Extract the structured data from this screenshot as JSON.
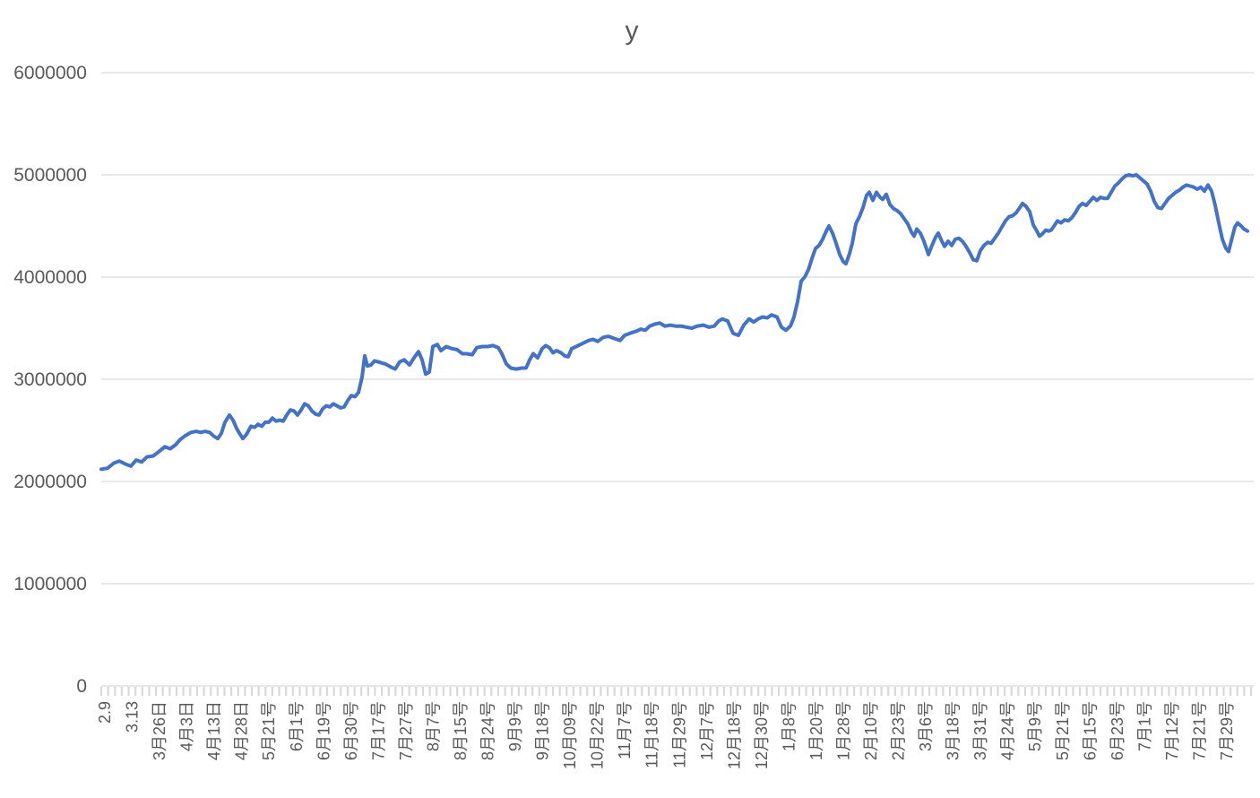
{
  "chart_data": {
    "type": "line",
    "title": "y",
    "legend": "none",
    "grid": "horizontal",
    "colors": {
      "series": "#4472C4",
      "gridline": "#D9D9D9",
      "axis": "#D9D9D9",
      "labels": "#595959",
      "background": "#FFFFFF"
    },
    "ylim": [
      0,
      6000000
    ],
    "y_ticks": [
      0,
      1000000,
      2000000,
      3000000,
      4000000,
      5000000,
      6000000
    ],
    "x_axis": {
      "minor_tick_count": 169,
      "label_every_n_categories": 4,
      "labels": [
        "2.9",
        "3.13",
        "3月26日",
        "4月3日",
        "4月13日",
        "4月28日",
        "5月21号",
        "6月1号",
        "6月19号",
        "6月30号",
        "7月17号",
        "7月27号",
        "8月7号",
        "8月15号",
        "8月24号",
        "9月9号",
        "9月18号",
        "10月09号",
        "10月22号",
        "11月7号",
        "11月18号",
        "11月29号",
        "12月7号",
        "12月18号",
        "12月30号",
        "1月8号",
        "1月20号",
        "1月28号",
        "2月10号",
        "2月23号",
        "3月6号",
        "3月18号",
        "3月31号",
        "4月24号",
        "5月9号",
        "5月21号",
        "6月15号",
        "6月23号",
        "7月1号",
        "7月12号",
        "7月21号",
        "7月29号"
      ]
    },
    "series": [
      {
        "name": "y",
        "points": [
          [
            0,
            2120000
          ],
          [
            7,
            2130000
          ],
          [
            14,
            2180000
          ],
          [
            20,
            2200000
          ],
          [
            27,
            2170000
          ],
          [
            33,
            2150000
          ],
          [
            39,
            2210000
          ],
          [
            45,
            2190000
          ],
          [
            51,
            2240000
          ],
          [
            58,
            2250000
          ],
          [
            64,
            2290000
          ],
          [
            71,
            2340000
          ],
          [
            77,
            2320000
          ],
          [
            83,
            2360000
          ],
          [
            88,
            2410000
          ],
          [
            94,
            2450000
          ],
          [
            100,
            2480000
          ],
          [
            106,
            2490000
          ],
          [
            111,
            2480000
          ],
          [
            116,
            2490000
          ],
          [
            121,
            2480000
          ],
          [
            126,
            2440000
          ],
          [
            130,
            2420000
          ],
          [
            134,
            2470000
          ],
          [
            138,
            2580000
          ],
          [
            143,
            2650000
          ],
          [
            147,
            2600000
          ],
          [
            151,
            2520000
          ],
          [
            155,
            2460000
          ],
          [
            158,
            2420000
          ],
          [
            162,
            2460000
          ],
          [
            167,
            2540000
          ],
          [
            171,
            2530000
          ],
          [
            175,
            2560000
          ],
          [
            179,
            2540000
          ],
          [
            183,
            2580000
          ],
          [
            187,
            2580000
          ],
          [
            191,
            2620000
          ],
          [
            195,
            2590000
          ],
          [
            199,
            2600000
          ],
          [
            203,
            2590000
          ],
          [
            207,
            2650000
          ],
          [
            211,
            2700000
          ],
          [
            215,
            2690000
          ],
          [
            219,
            2650000
          ],
          [
            223,
            2700000
          ],
          [
            227,
            2760000
          ],
          [
            231,
            2740000
          ],
          [
            235,
            2690000
          ],
          [
            239,
            2660000
          ],
          [
            243,
            2650000
          ],
          [
            247,
            2710000
          ],
          [
            251,
            2740000
          ],
          [
            255,
            2730000
          ],
          [
            259,
            2760000
          ],
          [
            263,
            2740000
          ],
          [
            267,
            2720000
          ],
          [
            271,
            2730000
          ],
          [
            275,
            2790000
          ],
          [
            279,
            2840000
          ],
          [
            283,
            2830000
          ],
          [
            287,
            2870000
          ],
          [
            291,
            3020000
          ],
          [
            294,
            3230000
          ],
          [
            297,
            3130000
          ],
          [
            301,
            3140000
          ],
          [
            305,
            3180000
          ],
          [
            309,
            3170000
          ],
          [
            313,
            3160000
          ],
          [
            317,
            3150000
          ],
          [
            323,
            3120000
          ],
          [
            328,
            3100000
          ],
          [
            333,
            3170000
          ],
          [
            338,
            3190000
          ],
          [
            344,
            3140000
          ],
          [
            349,
            3210000
          ],
          [
            354,
            3270000
          ],
          [
            358,
            3190000
          ],
          [
            362,
            3050000
          ],
          [
            366,
            3070000
          ],
          [
            370,
            3320000
          ],
          [
            375,
            3340000
          ],
          [
            379,
            3280000
          ],
          [
            385,
            3320000
          ],
          [
            391,
            3300000
          ],
          [
            397,
            3290000
          ],
          [
            403,
            3250000
          ],
          [
            408,
            3250000
          ],
          [
            414,
            3240000
          ],
          [
            419,
            3310000
          ],
          [
            425,
            3320000
          ],
          [
            431,
            3320000
          ],
          [
            437,
            3330000
          ],
          [
            443,
            3310000
          ],
          [
            447,
            3250000
          ],
          [
            452,
            3150000
          ],
          [
            457,
            3110000
          ],
          [
            463,
            3100000
          ],
          [
            469,
            3110000
          ],
          [
            474,
            3110000
          ],
          [
            478,
            3190000
          ],
          [
            482,
            3250000
          ],
          [
            487,
            3210000
          ],
          [
            492,
            3300000
          ],
          [
            496,
            3330000
          ],
          [
            500,
            3310000
          ],
          [
            504,
            3260000
          ],
          [
            508,
            3280000
          ],
          [
            513,
            3260000
          ],
          [
            517,
            3230000
          ],
          [
            521,
            3220000
          ],
          [
            525,
            3300000
          ],
          [
            530,
            3320000
          ],
          [
            537,
            3350000
          ],
          [
            544,
            3380000
          ],
          [
            549,
            3390000
          ],
          [
            554,
            3370000
          ],
          [
            560,
            3410000
          ],
          [
            566,
            3420000
          ],
          [
            572,
            3400000
          ],
          [
            579,
            3380000
          ],
          [
            584,
            3430000
          ],
          [
            590,
            3450000
          ],
          [
            597,
            3470000
          ],
          [
            602,
            3490000
          ],
          [
            607,
            3480000
          ],
          [
            612,
            3520000
          ],
          [
            618,
            3540000
          ],
          [
            623,
            3550000
          ],
          [
            629,
            3520000
          ],
          [
            635,
            3530000
          ],
          [
            641,
            3520000
          ],
          [
            647,
            3520000
          ],
          [
            653,
            3510000
          ],
          [
            659,
            3500000
          ],
          [
            665,
            3520000
          ],
          [
            672,
            3530000
          ],
          [
            678,
            3510000
          ],
          [
            684,
            3520000
          ],
          [
            689,
            3570000
          ],
          [
            693,
            3590000
          ],
          [
            699,
            3570000
          ],
          [
            705,
            3450000
          ],
          [
            711,
            3430000
          ],
          [
            717,
            3530000
          ],
          [
            723,
            3590000
          ],
          [
            728,
            3560000
          ],
          [
            733,
            3590000
          ],
          [
            738,
            3610000
          ],
          [
            743,
            3600000
          ],
          [
            748,
            3630000
          ],
          [
            754,
            3610000
          ],
          [
            759,
            3510000
          ],
          [
            764,
            3480000
          ],
          [
            769,
            3520000
          ],
          [
            773,
            3610000
          ],
          [
            777,
            3760000
          ],
          [
            781,
            3960000
          ],
          [
            785,
            4000000
          ],
          [
            789,
            4070000
          ],
          [
            793,
            4180000
          ],
          [
            797,
            4280000
          ],
          [
            801,
            4310000
          ],
          [
            805,
            4370000
          ],
          [
            809,
            4450000
          ],
          [
            812,
            4500000
          ],
          [
            816,
            4430000
          ],
          [
            820,
            4330000
          ],
          [
            824,
            4220000
          ],
          [
            828,
            4150000
          ],
          [
            831,
            4130000
          ],
          [
            835,
            4230000
          ],
          [
            838,
            4330000
          ],
          [
            842,
            4520000
          ],
          [
            846,
            4590000
          ],
          [
            850,
            4680000
          ],
          [
            854,
            4800000
          ],
          [
            857,
            4830000
          ],
          [
            861,
            4750000
          ],
          [
            865,
            4830000
          ],
          [
            869,
            4780000
          ],
          [
            872,
            4760000
          ],
          [
            876,
            4810000
          ],
          [
            880,
            4710000
          ],
          [
            884,
            4670000
          ],
          [
            888,
            4650000
          ],
          [
            892,
            4620000
          ],
          [
            896,
            4570000
          ],
          [
            900,
            4520000
          ],
          [
            904,
            4440000
          ],
          [
            907,
            4400000
          ],
          [
            910,
            4470000
          ],
          [
            914,
            4430000
          ],
          [
            918,
            4350000
          ],
          [
            923,
            4220000
          ],
          [
            927,
            4310000
          ],
          [
            931,
            4390000
          ],
          [
            934,
            4430000
          ],
          [
            938,
            4350000
          ],
          [
            941,
            4300000
          ],
          [
            945,
            4350000
          ],
          [
            949,
            4310000
          ],
          [
            953,
            4370000
          ],
          [
            957,
            4380000
          ],
          [
            961,
            4350000
          ],
          [
            965,
            4300000
          ],
          [
            969,
            4240000
          ],
          [
            973,
            4170000
          ],
          [
            977,
            4160000
          ],
          [
            981,
            4260000
          ],
          [
            985,
            4310000
          ],
          [
            989,
            4340000
          ],
          [
            993,
            4330000
          ],
          [
            997,
            4380000
          ],
          [
            1001,
            4430000
          ],
          [
            1005,
            4490000
          ],
          [
            1009,
            4550000
          ],
          [
            1013,
            4590000
          ],
          [
            1017,
            4600000
          ],
          [
            1021,
            4630000
          ],
          [
            1025,
            4680000
          ],
          [
            1028,
            4720000
          ],
          [
            1032,
            4690000
          ],
          [
            1036,
            4640000
          ],
          [
            1040,
            4510000
          ],
          [
            1044,
            4450000
          ],
          [
            1047,
            4400000
          ],
          [
            1050,
            4420000
          ],
          [
            1054,
            4460000
          ],
          [
            1057,
            4450000
          ],
          [
            1060,
            4460000
          ],
          [
            1064,
            4510000
          ],
          [
            1067,
            4550000
          ],
          [
            1071,
            4530000
          ],
          [
            1075,
            4560000
          ],
          [
            1079,
            4550000
          ],
          [
            1083,
            4580000
          ],
          [
            1087,
            4630000
          ],
          [
            1091,
            4690000
          ],
          [
            1095,
            4720000
          ],
          [
            1099,
            4700000
          ],
          [
            1103,
            4740000
          ],
          [
            1107,
            4780000
          ],
          [
            1111,
            4750000
          ],
          [
            1115,
            4780000
          ],
          [
            1119,
            4770000
          ],
          [
            1123,
            4770000
          ],
          [
            1127,
            4830000
          ],
          [
            1131,
            4890000
          ],
          [
            1135,
            4920000
          ],
          [
            1139,
            4960000
          ],
          [
            1143,
            4990000
          ],
          [
            1147,
            5000000
          ],
          [
            1151,
            4990000
          ],
          [
            1155,
            5000000
          ],
          [
            1159,
            4970000
          ],
          [
            1163,
            4940000
          ],
          [
            1167,
            4910000
          ],
          [
            1171,
            4840000
          ],
          [
            1175,
            4740000
          ],
          [
            1179,
            4680000
          ],
          [
            1183,
            4670000
          ],
          [
            1187,
            4720000
          ],
          [
            1191,
            4770000
          ],
          [
            1195,
            4800000
          ],
          [
            1199,
            4830000
          ],
          [
            1203,
            4850000
          ],
          [
            1207,
            4880000
          ],
          [
            1211,
            4900000
          ],
          [
            1215,
            4890000
          ],
          [
            1219,
            4880000
          ],
          [
            1223,
            4860000
          ],
          [
            1227,
            4880000
          ],
          [
            1231,
            4840000
          ],
          [
            1235,
            4900000
          ],
          [
            1239,
            4840000
          ],
          [
            1243,
            4700000
          ],
          [
            1247,
            4530000
          ],
          [
            1251,
            4370000
          ],
          [
            1255,
            4280000
          ],
          [
            1258,
            4250000
          ],
          [
            1262,
            4390000
          ],
          [
            1265,
            4490000
          ],
          [
            1268,
            4530000
          ],
          [
            1272,
            4500000
          ],
          [
            1275,
            4470000
          ],
          [
            1279,
            4450000
          ]
        ]
      }
    ]
  }
}
